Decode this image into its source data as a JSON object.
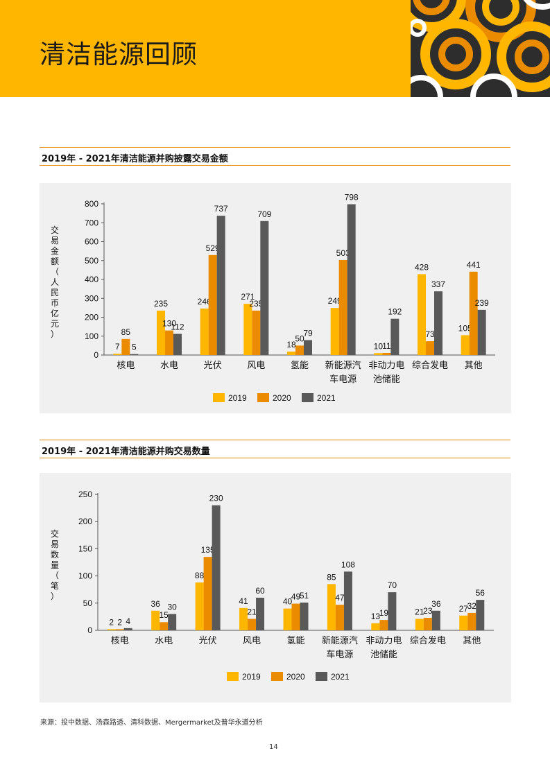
{
  "page": {
    "title": "清洁能源回顾",
    "page_number": "14",
    "source": "来源：投中数据、汤森路透、清科数据、Mergermarket及普华永道分析",
    "colors": {
      "header": "#FFB600",
      "c2019": "#FFB600",
      "c2020": "#EB8C00",
      "c2021": "#595959",
      "panel": "#f0f0f0",
      "rule": "#EB8C00"
    }
  },
  "section1": {
    "title": "2019年 - 2021年清洁能源并购披露交易金额"
  },
  "section2": {
    "title": "2019年 - 2021年清洁能源并购交易数量"
  },
  "chart_data": [
    {
      "type": "bar",
      "ylabel": "交易金额（人民币亿元）",
      "ylim": [
        0,
        800
      ],
      "yticks": [
        0,
        100,
        200,
        300,
        400,
        500,
        600,
        700,
        800
      ],
      "categories": [
        "核电",
        "水电",
        "光伏",
        "风电",
        "氢能",
        "新能源汽车电源",
        "非动力电池储能",
        "综合发电",
        "其他"
      ],
      "category_lines": [
        [
          "核电"
        ],
        [
          "水电"
        ],
        [
          "光伏"
        ],
        [
          "风电"
        ],
        [
          "氢能"
        ],
        [
          "新能源汽",
          "车电源"
        ],
        [
          "非动力电",
          "池储能"
        ],
        [
          "综合发电"
        ],
        [
          "其他"
        ]
      ],
      "series": [
        {
          "name": "2019",
          "values": [
            7,
            235,
            246,
            271,
            18,
            249,
            10,
            428,
            105
          ]
        },
        {
          "name": "2020",
          "values": [
            85,
            130,
            529,
            235,
            50,
            503,
            11,
            73,
            441
          ]
        },
        {
          "name": "2021",
          "values": [
            5,
            112,
            737,
            709,
            79,
            798,
            192,
            337,
            239
          ]
        }
      ],
      "legend": "bottom",
      "grid": false
    },
    {
      "type": "bar",
      "ylabel": "交易数量（笔）",
      "ylim": [
        0,
        250
      ],
      "yticks": [
        0,
        50,
        100,
        150,
        200,
        250
      ],
      "categories": [
        "核电",
        "水电",
        "光伏",
        "风电",
        "氢能",
        "新能源汽车电源",
        "非动力电池储能",
        "综合发电",
        "其他"
      ],
      "category_lines": [
        [
          "核电"
        ],
        [
          "水电"
        ],
        [
          "光伏"
        ],
        [
          "风电"
        ],
        [
          "氢能"
        ],
        [
          "新能源汽",
          "车电源"
        ],
        [
          "非动力电",
          "池储能"
        ],
        [
          "综合发电"
        ],
        [
          "其他"
        ]
      ],
      "series": [
        {
          "name": "2019",
          "values": [
            2,
            36,
            88,
            41,
            40,
            85,
            13,
            21,
            27
          ]
        },
        {
          "name": "2020",
          "values": [
            2,
            15,
            135,
            21,
            49,
            47,
            19,
            23,
            32
          ]
        },
        {
          "name": "2021",
          "values": [
            4,
            30,
            230,
            60,
            51,
            108,
            70,
            36,
            56
          ]
        }
      ],
      "legend": "bottom",
      "grid": false
    }
  ]
}
